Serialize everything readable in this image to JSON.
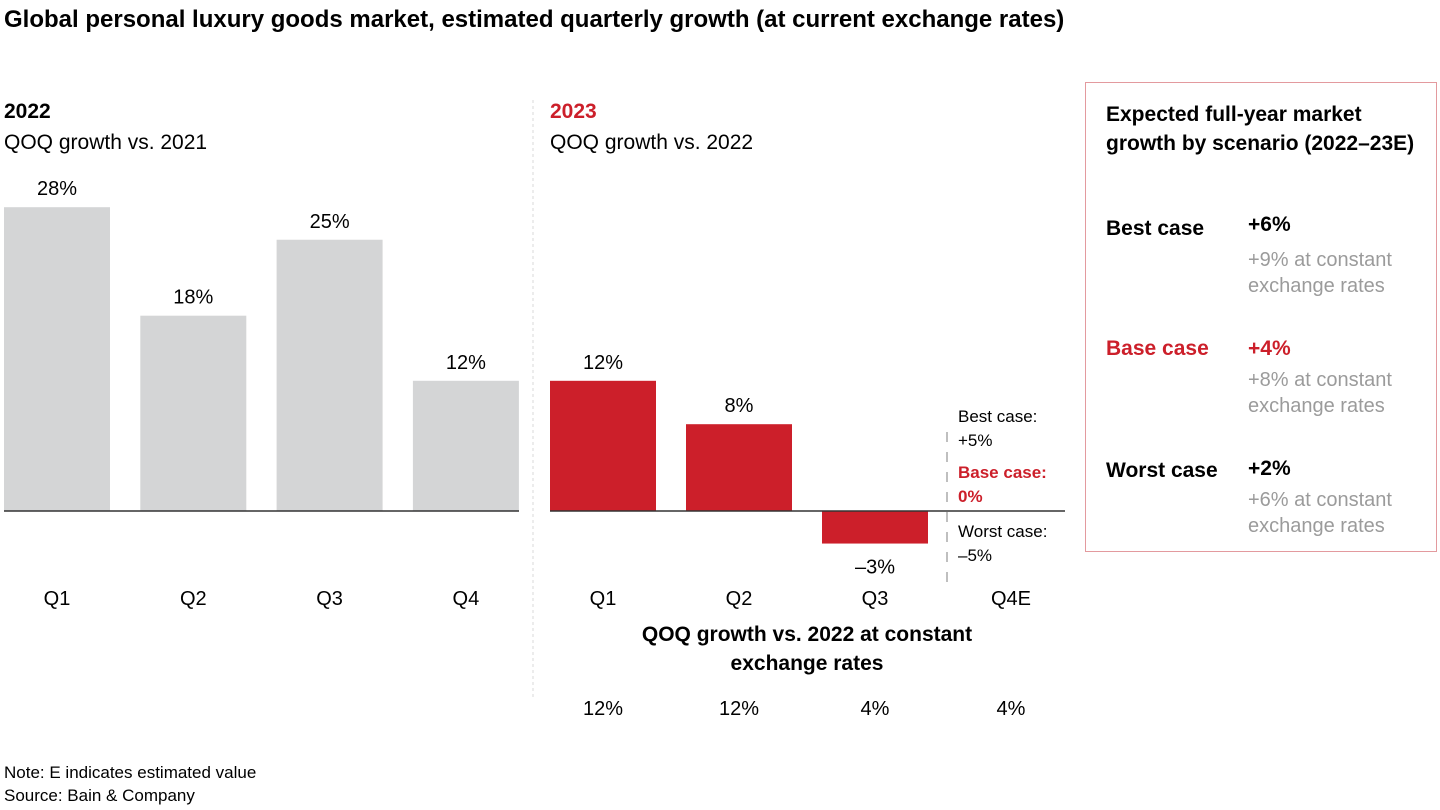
{
  "title": "Global personal luxury goods market, estimated quarterly growth (at current exchange rates)",
  "colors": {
    "bar_2022": "#d4d5d6",
    "bar_2023": "#cc1f2a",
    "accent_red": "#cc1f2a",
    "muted_text": "#9b9b9b",
    "box_border": "#e39a9e"
  },
  "chart_data": [
    {
      "type": "bar",
      "year_label": "2022",
      "subtitle": "QOQ growth vs. 2021",
      "categories": [
        "Q1",
        "Q2",
        "Q3",
        "Q4"
      ],
      "values": [
        28,
        18,
        25,
        12
      ],
      "data_labels": [
        "28%",
        "18%",
        "25%",
        "12%"
      ],
      "unit": "%",
      "grid": false
    },
    {
      "type": "bar",
      "year_label": "2023",
      "subtitle": "QOQ growth vs. 2022",
      "categories": [
        "Q1",
        "Q2",
        "Q3",
        "Q4E"
      ],
      "values": [
        12,
        8,
        -3,
        null
      ],
      "data_labels": [
        "12%",
        "8%",
        "–3%",
        ""
      ],
      "unit": "%",
      "grid": false,
      "q4e_scenarios": [
        {
          "label": "Best case:",
          "value": "+5%",
          "highlight": false
        },
        {
          "label": "Base case:",
          "value": "0%",
          "highlight": true
        },
        {
          "label": "Worst case:",
          "value": "–5%",
          "highlight": false
        }
      ],
      "constant_fx": {
        "title": "QOQ growth vs. 2022 at constant exchange rates",
        "values": [
          "12%",
          "12%",
          "4%",
          "4%"
        ]
      }
    }
  ],
  "scenario_box": {
    "title": "Expected full-year market growth by scenario (2022–23E)",
    "items": [
      {
        "label": "Best case",
        "value": "+6%",
        "sub": "+9% at constant exchange rates",
        "highlight": false
      },
      {
        "label": "Base case",
        "value": "+4%",
        "sub": "+8% at constant exchange rates",
        "highlight": true
      },
      {
        "label": "Worst case",
        "value": "+2%",
        "sub": "+6% at constant exchange rates",
        "highlight": false
      }
    ]
  },
  "notes": {
    "note": "Note: E indicates estimated value",
    "source": "Source: Bain & Company"
  }
}
